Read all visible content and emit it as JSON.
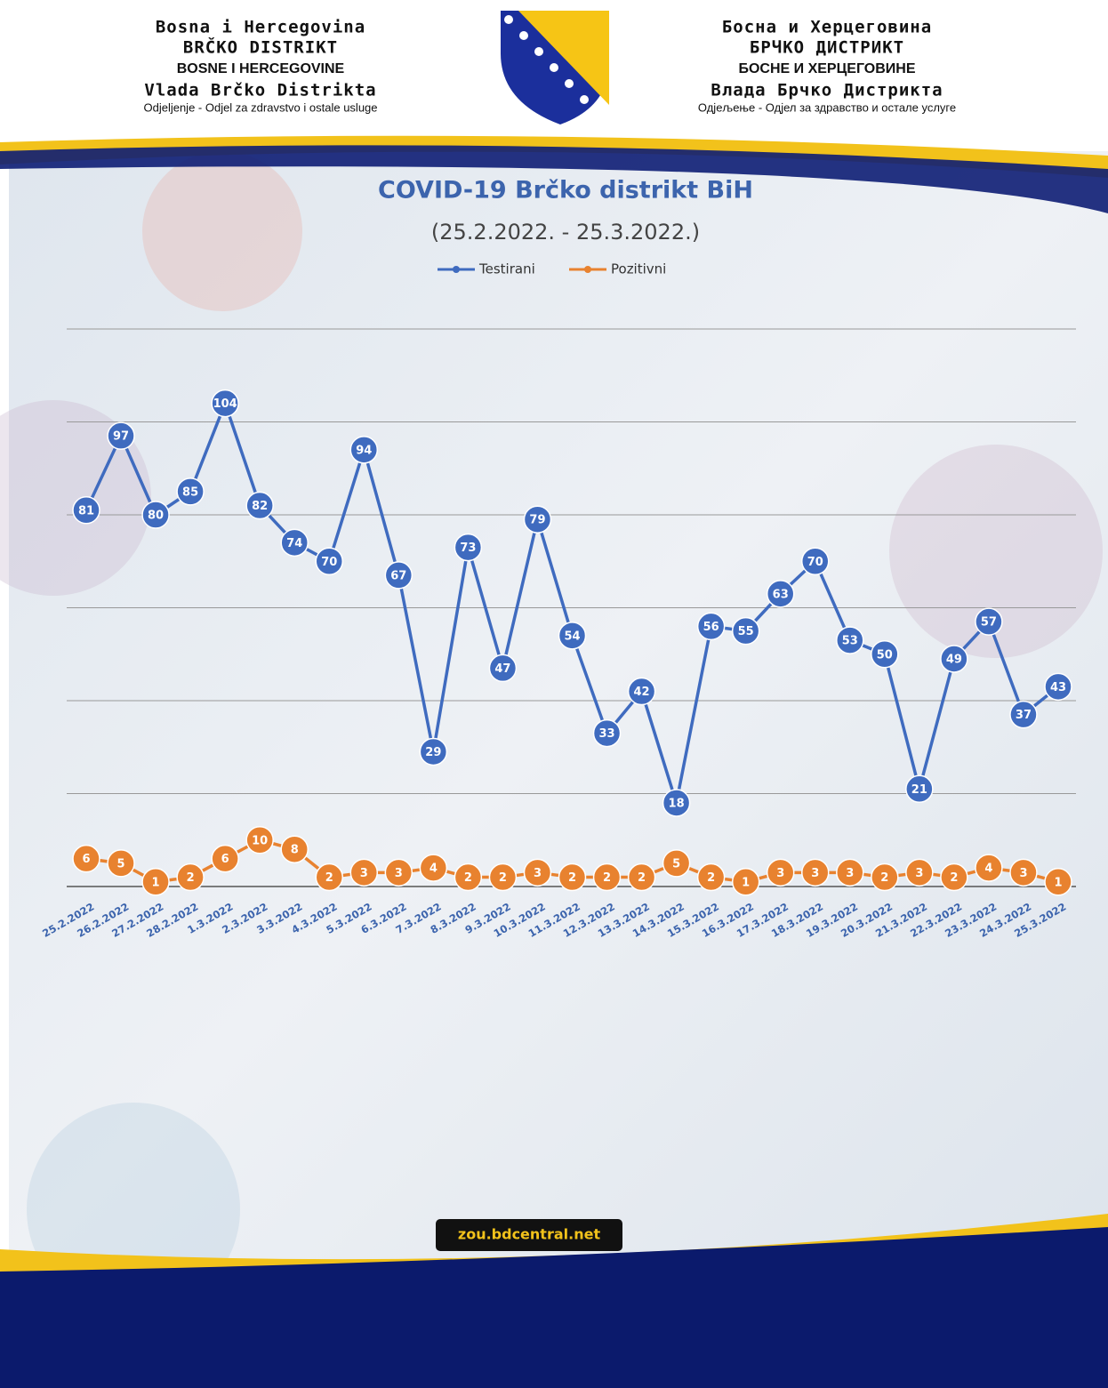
{
  "header": {
    "left": [
      "Bosna i Hercegovina",
      "BRČKO DISTRIKT",
      "BOSNE I HERCEGOVINE",
      "Vlada Brčko Distrikta",
      "Odjeljenje - Odjel za zdravstvo i ostale usluge"
    ],
    "right": [
      "Босна и Херцеговина",
      "БРЧКО ДИСТРИКТ",
      "БОСНЕ И ХЕРЦЕГОВИНЕ",
      "Влада Брчко Дистрикта",
      "Одјељење - Одјел за здравство и остале услуге"
    ]
  },
  "chart_data": {
    "type": "line",
    "title": "COVID-19 Brčko distrikt BiH",
    "subtitle": "(25.2.2022. - 25.3.2022.)",
    "categories": [
      "25.2.2022",
      "26.2.2022",
      "27.2.2022",
      "28.2.2022",
      "1.3.2022",
      "2.3.2022",
      "3.3.2022",
      "4.3.2022",
      "5.3.2022",
      "6.3.2022",
      "7.3.2022",
      "8.3.2022",
      "9.3.2022",
      "10.3.2022",
      "11.3.2022",
      "12.3.2022",
      "13.3.2022",
      "14.3.2022",
      "15.3.2022",
      "16.3.2022",
      "17.3.2022",
      "18.3.2022",
      "19.3.2022",
      "20.3.2022",
      "21.3.2022",
      "22.3.2022",
      "23.3.2022",
      "24.3.2022",
      "25.3.2022"
    ],
    "series": [
      {
        "name": "Testirani",
        "color": "#3f6bbf",
        "values": [
          81,
          97,
          80,
          85,
          104,
          82,
          74,
          70,
          94,
          67,
          29,
          73,
          47,
          79,
          54,
          33,
          42,
          18,
          56,
          55,
          63,
          70,
          53,
          50,
          21,
          49,
          57,
          37,
          43
        ]
      },
      {
        "name": "Pozitivni",
        "color": "#e8822f",
        "values": [
          6,
          5,
          1,
          2,
          6,
          10,
          8,
          2,
          3,
          3,
          4,
          2,
          2,
          3,
          2,
          2,
          2,
          5,
          2,
          1,
          3,
          3,
          3,
          2,
          3,
          2,
          4,
          3,
          1
        ]
      }
    ],
    "ylim": [
      0,
      120
    ],
    "yticks": [
      0,
      20,
      40,
      60,
      80,
      100,
      120
    ],
    "tick_labels": false,
    "grid": true,
    "legend": "top"
  },
  "footer": {
    "url": "zou.bdcentral.net"
  }
}
